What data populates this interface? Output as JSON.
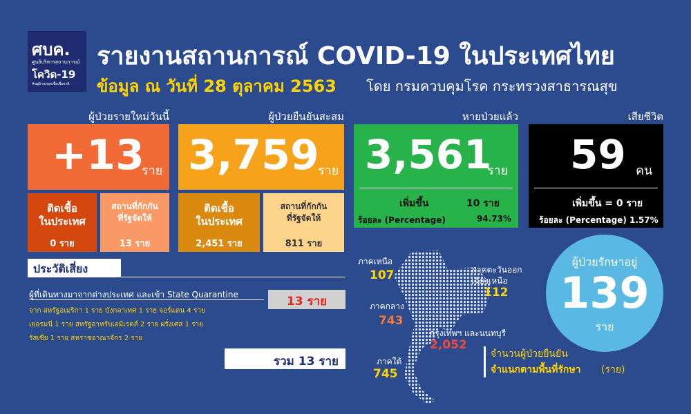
{
  "header": {
    "logo": {
      "abbr": "ศบค.",
      "org": "ศูนย์บริหารสถานการณ์",
      "name": "โควิด-19",
      "tagline": "#อยู่บ้านหยุดเชื้อเพื่อชาติ"
    },
    "title": "รายงานสถานการณ์ COVID-19 ในประเทศไทย",
    "date": "ข้อมูล ณ วันที่ 28 ตุลาคม 2563",
    "source": "โดย กรมควบคุมโรค กระทรวงสาธารณสุข"
  },
  "new_cases": {
    "label": "ผู้ป่วยรายใหม่วันนี้",
    "value": "+13",
    "unit": "ราย",
    "breakdown": [
      {
        "label": [
          "ติดเชื้อ",
          "ในประเทศ"
        ],
        "value": "0 ราย"
      },
      {
        "label": [
          "สถานที่กักกัน",
          "ที่รัฐจัดให้"
        ],
        "value": "13 ราย"
      }
    ]
  },
  "cumulative": {
    "label": "ผู้ป่วยยืนยันสะสม",
    "value": "3,759",
    "unit": "ราย",
    "breakdown": [
      {
        "label": [
          "ติดเชื้อ",
          "ในประเทศ"
        ],
        "value": "2,451 ราย"
      },
      {
        "label": [
          "สถานที่กักกัน",
          "ที่รัฐจัดให้"
        ],
        "value": "811 ราย"
      }
    ]
  },
  "recovered": {
    "label": "หายป่วยแล้ว",
    "value": "3,561",
    "unit": "ราย",
    "increase_label": "เพิ่มขึ้น",
    "increase": "10 ราย",
    "pct_label": "ร้อยละ (Percentage)",
    "pct": "94.73%"
  },
  "deaths": {
    "label": "เสียชีวิต",
    "value": "59",
    "unit": "คน",
    "increase": "เพิ่มขึ้น = 0 ราย",
    "pct": "ร้อยละ (Percentage) 1.57%"
  },
  "risk": {
    "title": "ประวัติเสี่ยง",
    "description": "ผู้ที่เดินทางมาจากต่างประเทศ และเข้า State Quarantine",
    "count": "13 ราย",
    "details": [
      "จาก สหรัฐอเมริกา 1 ราย บังกลาเทศ 1 ราย จอร์แดน 4 ราย",
      "เยอรมนี 1 ราย สหรัฐอาหรับเอมิเรตส์ 2 ราย ฝรั่งเศส 1 ราย",
      "รัสเซีย 1 ราย สหราชอาณาจักร 2 ราย"
    ],
    "total": "รวม 13 ราย"
  },
  "regions": [
    {
      "name": [
        "ภาคเหนือ"
      ],
      "value": "107"
    },
    {
      "name": [
        "ภาคตะวันออก",
        "เฉียงเหนือ"
      ],
      "value": "112"
    },
    {
      "name": [
        "ภาคกลาง"
      ],
      "value": "743"
    },
    {
      "name": [
        "กรุงเทพฯ และนนทบุรี"
      ],
      "value": "2,052"
    },
    {
      "name": [
        "ภาคใต้"
      ],
      "value": "745"
    }
  ],
  "in_treatment": {
    "label": "ผู้ป่วยรักษาอยู่",
    "value": "139",
    "unit": "ราย"
  },
  "map_legend": {
    "line1": "จำนวนผู้ป่วยยืนยัน",
    "line2": "จำแนกตามพื้นที่รักษา",
    "unit": "(ราย)"
  }
}
